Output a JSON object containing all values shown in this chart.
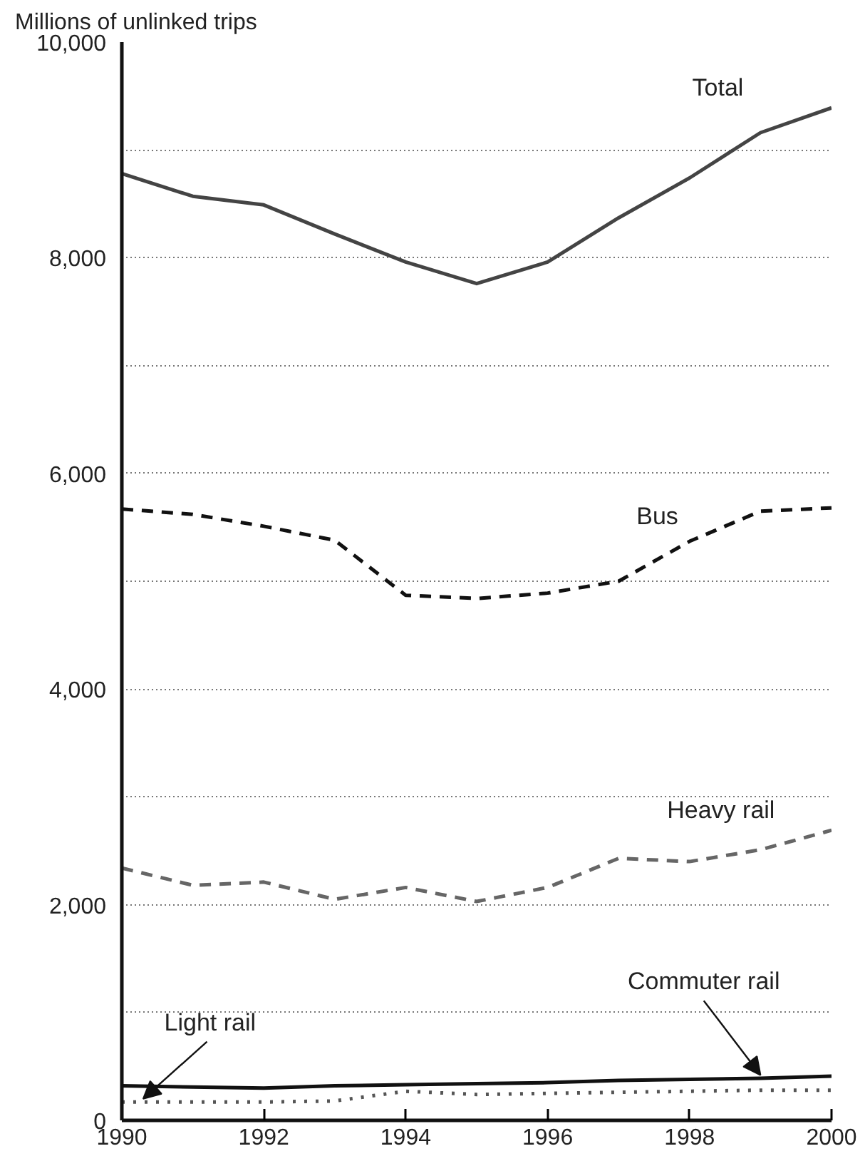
{
  "chart_data": {
    "type": "line",
    "ylabel": "Millions of unlinked trips",
    "x": [
      1990,
      1991,
      1992,
      1993,
      1994,
      1995,
      1996,
      1997,
      1998,
      1999,
      2000
    ],
    "series": [
      {
        "name": "Total",
        "color": "#444444",
        "line_style": "solid",
        "values": [
          8780,
          8570,
          8490,
          8220,
          7960,
          7760,
          7960,
          8370,
          8740,
          9160,
          9390
        ]
      },
      {
        "name": "Bus",
        "color": "#111111",
        "line_style": "dashed",
        "values": [
          5670,
          5620,
          5510,
          5380,
          4870,
          4840,
          4890,
          5000,
          5370,
          5650,
          5680
        ]
      },
      {
        "name": "Heavy rail",
        "color": "#666666",
        "line_style": "dashed",
        "values": [
          2340,
          2180,
          2210,
          2050,
          2160,
          2030,
          2160,
          2430,
          2400,
          2510,
          2690
        ]
      },
      {
        "name": "Commuter rail",
        "color": "#111111",
        "line_style": "solid",
        "values": [
          320,
          310,
          300,
          320,
          330,
          340,
          350,
          370,
          380,
          390,
          410
        ]
      },
      {
        "name": "Light rail",
        "color": "#555555",
        "line_style": "dotted",
        "values": [
          170,
          170,
          170,
          180,
          270,
          240,
          250,
          260,
          270,
          280,
          280
        ]
      }
    ],
    "xlim": [
      1990,
      2000
    ],
    "xticks": [
      1990,
      1992,
      1994,
      1996,
      1998,
      2000
    ],
    "ylim": [
      0,
      10000
    ],
    "yticks": [
      0,
      {
        "value": 1000,
        "label": null
      },
      {
        "value": 2000,
        "label": "2,000"
      },
      {
        "value": 3000,
        "label": null
      },
      {
        "value": 4000,
        "label": "4,000"
      },
      {
        "value": 5000,
        "label": null
      },
      {
        "value": 6000,
        "label": "6,000"
      },
      {
        "value": 7000,
        "label": null
      },
      {
        "value": 8000,
        "label": "8,000"
      },
      {
        "value": 9000,
        "label": null
      },
      {
        "value": 10000,
        "label": "10,000"
      }
    ],
    "grid": "y"
  }
}
